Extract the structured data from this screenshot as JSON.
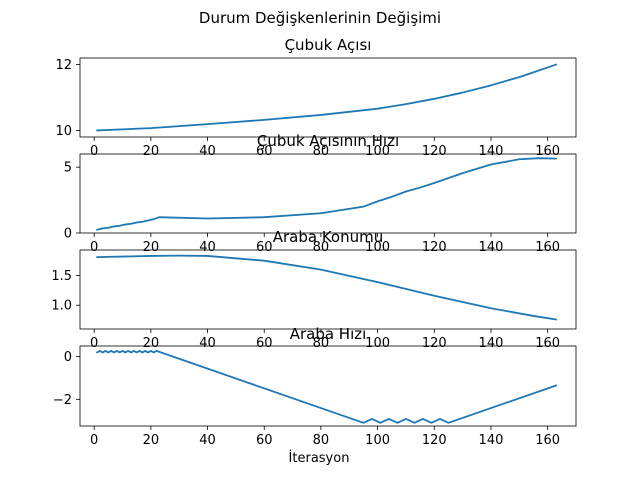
{
  "figure": {
    "suptitle": "Durum Değişkenlerinin Değişimi",
    "xlabel": "İterasyon"
  },
  "colors": {
    "line": "#1f77b4"
  },
  "chart_data": [
    {
      "type": "line",
      "title": "Çubuk Açısı",
      "xlim": [
        -5,
        170
      ],
      "ylim": [
        9.8,
        12.2
      ],
      "xticks": [
        0,
        20,
        40,
        60,
        80,
        100,
        120,
        140,
        160
      ],
      "yticks": [
        10,
        12
      ],
      "grid": false,
      "x": [
        1,
        20,
        40,
        60,
        80,
        100,
        110,
        120,
        130,
        140,
        150,
        163
      ],
      "y": [
        10.0,
        10.07,
        10.19,
        10.32,
        10.47,
        10.66,
        10.8,
        10.96,
        11.15,
        11.37,
        11.62,
        12.0
      ]
    },
    {
      "type": "line",
      "title": "Çubuk Açısının Hızı",
      "xlim": [
        -5,
        170
      ],
      "ylim": [
        0,
        6
      ],
      "xticks": [
        0,
        20,
        40,
        60,
        80,
        100,
        120,
        140,
        160
      ],
      "yticks": [
        0,
        5
      ],
      "grid": false,
      "x": [
        1,
        3,
        5,
        7,
        9,
        11,
        13,
        15,
        17,
        19,
        21,
        23,
        40,
        60,
        80,
        95,
        100,
        105,
        110,
        115,
        120,
        130,
        140,
        150,
        157,
        163
      ],
      "y": [
        0.25,
        0.35,
        0.4,
        0.5,
        0.55,
        0.65,
        0.7,
        0.8,
        0.85,
        0.95,
        1.05,
        1.2,
        1.1,
        1.2,
        1.5,
        2.0,
        2.4,
        2.75,
        3.15,
        3.45,
        3.8,
        4.55,
        5.2,
        5.6,
        5.68,
        5.65
      ]
    },
    {
      "type": "line",
      "title": "Araba Konumu",
      "xlim": [
        -5,
        170
      ],
      "ylim": [
        0.6,
        1.93
      ],
      "xticks": [
        0,
        20,
        40,
        60,
        80,
        100,
        120,
        140,
        160
      ],
      "yticks": [
        1.0,
        1.5
      ],
      "grid": false,
      "x": [
        1,
        20,
        30,
        40,
        60,
        80,
        100,
        120,
        140,
        155,
        163
      ],
      "y": [
        1.81,
        1.83,
        1.835,
        1.83,
        1.75,
        1.6,
        1.39,
        1.16,
        0.95,
        0.82,
        0.76
      ]
    },
    {
      "type": "line",
      "title": "Araba Hızı",
      "xlim": [
        -5,
        170
      ],
      "ylim": [
        -3.25,
        0.5
      ],
      "xticks": [
        0,
        20,
        40,
        60,
        80,
        100,
        120,
        140,
        160
      ],
      "yticks": [
        0,
        -2
      ],
      "grid": false,
      "x": [
        1,
        2,
        3,
        4,
        5,
        6,
        7,
        8,
        9,
        10,
        11,
        12,
        13,
        14,
        15,
        16,
        17,
        18,
        19,
        20,
        21,
        22,
        95,
        98,
        101,
        104,
        107,
        110,
        113,
        116,
        119,
        122,
        125,
        163
      ],
      "y": [
        0.2,
        0.27,
        0.2,
        0.27,
        0.2,
        0.27,
        0.2,
        0.27,
        0.2,
        0.27,
        0.2,
        0.27,
        0.2,
        0.27,
        0.2,
        0.27,
        0.2,
        0.27,
        0.2,
        0.27,
        0.2,
        0.27,
        -3.1,
        -2.92,
        -3.1,
        -2.92,
        -3.1,
        -2.92,
        -3.1,
        -2.92,
        -3.1,
        -2.92,
        -3.1,
        -1.35
      ]
    }
  ]
}
